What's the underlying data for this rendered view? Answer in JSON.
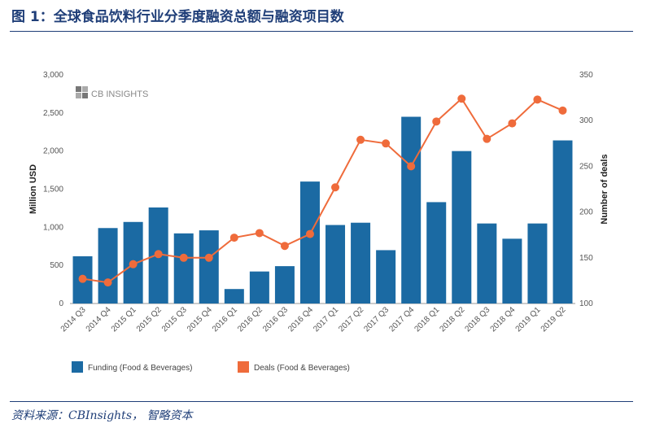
{
  "header": {
    "title": "图 1：全球食品饮料行业分季度融资总额与融资项目数"
  },
  "footer": {
    "source": "资料来源：CBInsights，  智略资本"
  },
  "logo": {
    "text": "CB INSIGHTS",
    "icon": "cb-insights-logo-icon"
  },
  "colors": {
    "bar": "#1b6aa3",
    "line": "#ef6b3b",
    "title": "#1f3e78"
  },
  "chart_data": {
    "type": "bar",
    "categories": [
      "2014 Q3",
      "2014 Q4",
      "2015 Q1",
      "2015 Q2",
      "2015 Q3",
      "2015 Q4",
      "2016 Q1",
      "2016 Q2",
      "2016 Q3",
      "2016 Q4",
      "2017 Q1",
      "2017 Q2",
      "2017 Q3",
      "2017 Q4",
      "2018 Q1",
      "2018 Q2",
      "2018 Q3",
      "2018 Q4",
      "2019 Q1",
      "2019 Q2"
    ],
    "series": [
      {
        "name": "Funding (Food & Beverages)",
        "type": "bar",
        "axis": "left",
        "values": [
          620,
          990,
          1070,
          1260,
          920,
          960,
          190,
          420,
          490,
          1600,
          1030,
          1060,
          700,
          2450,
          1330,
          2000,
          1050,
          850,
          1050,
          2140
        ]
      },
      {
        "name": "Deals (Food & Beverages)",
        "type": "line",
        "axis": "right",
        "values": [
          127,
          123,
          143,
          154,
          150,
          150,
          172,
          177,
          163,
          176,
          227,
          279,
          275,
          250,
          299,
          324,
          280,
          297,
          323,
          311
        ]
      }
    ],
    "ylabel": "Million USD",
    "ylabel_right": "Number of deals",
    "ylim": [
      0,
      3000
    ],
    "ylim_right": [
      100,
      350
    ],
    "yticks": [
      "0",
      "500",
      "1,000",
      "1,500",
      "2,000",
      "2,500",
      "3,000"
    ],
    "yticks_right": [
      "100",
      "150",
      "200",
      "250",
      "300",
      "350"
    ],
    "legend_placement": "bottom-left",
    "grid": false
  }
}
